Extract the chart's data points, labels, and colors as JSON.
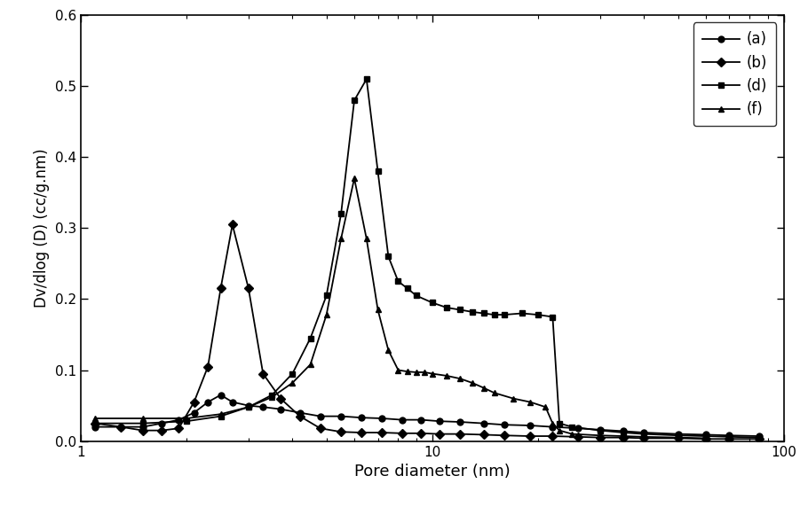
{
  "title": "",
  "xlabel": "Pore diameter (nm)",
  "ylabel": "Dv/dlog (D) (cc/g.nm)",
  "xlim": [
    1,
    100
  ],
  "ylim": [
    0,
    0.6
  ],
  "yticks": [
    0.0,
    0.1,
    0.2,
    0.3,
    0.4,
    0.5,
    0.6
  ],
  "series_a": {
    "label": "(a)",
    "marker": "o",
    "x": [
      1.1,
      1.3,
      1.5,
      1.7,
      1.9,
      2.1,
      2.3,
      2.5,
      2.7,
      3.0,
      3.3,
      3.7,
      4.2,
      4.8,
      5.5,
      6.3,
      7.2,
      8.2,
      9.3,
      10.5,
      12,
      14,
      16,
      19,
      22,
      26,
      30,
      35,
      40,
      50,
      60,
      70,
      85
    ],
    "y": [
      0.02,
      0.02,
      0.02,
      0.025,
      0.03,
      0.04,
      0.055,
      0.065,
      0.055,
      0.05,
      0.048,
      0.045,
      0.04,
      0.035,
      0.035,
      0.033,
      0.032,
      0.03,
      0.03,
      0.028,
      0.027,
      0.025,
      0.023,
      0.022,
      0.02,
      0.018,
      0.016,
      0.014,
      0.012,
      0.01,
      0.009,
      0.008,
      0.007
    ]
  },
  "series_b": {
    "label": "(b)",
    "marker": "D",
    "x": [
      1.1,
      1.3,
      1.5,
      1.7,
      1.9,
      2.1,
      2.3,
      2.5,
      2.7,
      3.0,
      3.3,
      3.7,
      4.2,
      4.8,
      5.5,
      6.3,
      7.2,
      8.2,
      9.3,
      10.5,
      12,
      14,
      16,
      19,
      22,
      26,
      30,
      35,
      40,
      50,
      60,
      70,
      85
    ],
    "y": [
      0.025,
      0.02,
      0.015,
      0.015,
      0.018,
      0.055,
      0.105,
      0.215,
      0.305,
      0.215,
      0.095,
      0.06,
      0.035,
      0.018,
      0.013,
      0.012,
      0.012,
      0.011,
      0.011,
      0.01,
      0.01,
      0.009,
      0.008,
      0.007,
      0.007,
      0.006,
      0.005,
      0.005,
      0.004,
      0.004,
      0.003,
      0.003,
      0.003
    ]
  },
  "series_d": {
    "label": "(d)",
    "marker": "s",
    "x": [
      1.1,
      1.5,
      2.0,
      2.5,
      3.0,
      3.5,
      4.0,
      4.5,
      5.0,
      5.5,
      6.0,
      6.5,
      7.0,
      7.5,
      8.0,
      8.5,
      9.0,
      10.0,
      11.0,
      12.0,
      13.0,
      14.0,
      15.0,
      16.0,
      18.0,
      20.0,
      22.0,
      23.0,
      25.0,
      30.0,
      35.0,
      40.0,
      50.0,
      60.0,
      70.0,
      85.0
    ],
    "y": [
      0.025,
      0.025,
      0.028,
      0.035,
      0.048,
      0.065,
      0.095,
      0.145,
      0.205,
      0.32,
      0.48,
      0.51,
      0.38,
      0.26,
      0.225,
      0.215,
      0.205,
      0.195,
      0.188,
      0.185,
      0.182,
      0.18,
      0.178,
      0.178,
      0.18,
      0.178,
      0.175,
      0.025,
      0.02,
      0.015,
      0.012,
      0.01,
      0.008,
      0.007,
      0.006,
      0.005
    ]
  },
  "series_f": {
    "label": "(f)",
    "marker": "^",
    "x": [
      1.1,
      1.5,
      2.0,
      2.5,
      3.0,
      3.5,
      4.0,
      4.5,
      5.0,
      5.5,
      6.0,
      6.5,
      7.0,
      7.5,
      8.0,
      8.5,
      9.0,
      9.5,
      10.0,
      11.0,
      12.0,
      13.0,
      14.0,
      15.0,
      17.0,
      19.0,
      21.0,
      22.0,
      23.0,
      25.0,
      30.0,
      35.0,
      40.0,
      50.0,
      60.0
    ],
    "y": [
      0.032,
      0.032,
      0.032,
      0.038,
      0.048,
      0.062,
      0.082,
      0.108,
      0.178,
      0.285,
      0.37,
      0.285,
      0.185,
      0.128,
      0.1,
      0.098,
      0.097,
      0.097,
      0.095,
      0.092,
      0.088,
      0.082,
      0.075,
      0.068,
      0.06,
      0.055,
      0.048,
      0.025,
      0.015,
      0.01,
      0.008,
      0.007,
      0.006,
      0.005,
      0.004
    ]
  },
  "line_color": "#000000",
  "marker_size": 5,
  "linewidth": 1.3,
  "legend_loc": "upper right",
  "background_color": "#ffffff",
  "figsize": [
    9.1,
    5.72
  ],
  "dpi": 100
}
